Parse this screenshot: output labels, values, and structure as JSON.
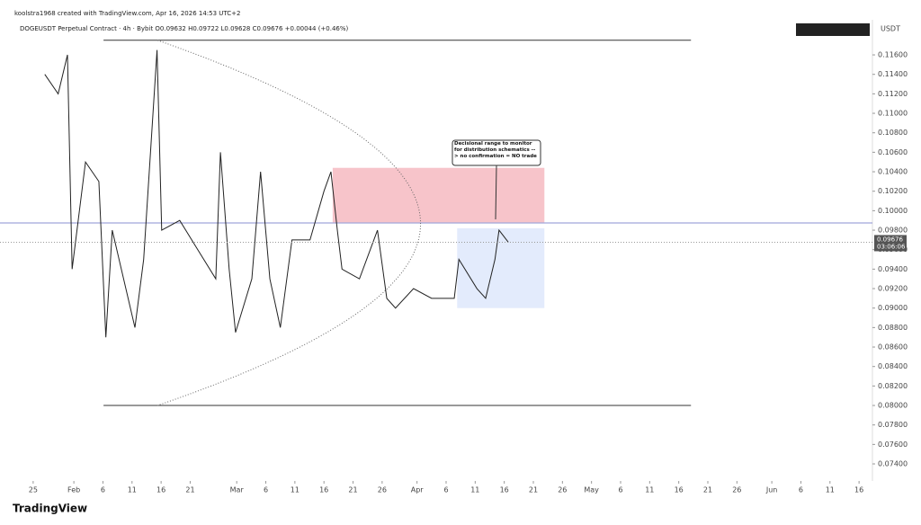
{
  "header": {
    "author_line": "koolstra1968 created with TradingView.com, Apr 16, 2026 14:53 UTC+2",
    "symbol_line": "DOGEUSDT Perpetual Contract · 4h · Bybit  O0.09632 H0.09722 L0.09628 C0.09676 +0.00044 (+0.46%)",
    "currency": "USDT"
  },
  "footer": {
    "logo": "TradingView"
  },
  "chart_data": {
    "type": "line",
    "color": "#222222",
    "x": [
      27,
      29.3,
      30.9,
      31.7,
      34,
      36.3,
      37.5,
      38.6,
      42.5,
      44,
      46.3,
      47.1,
      50.2,
      53.3,
      56.4,
      57.2,
      58.7,
      59.8,
      62.6,
      64.1,
      65.7,
      67.5,
      69.5,
      72.6,
      75,
      76.2,
      77.3,
      78.1,
      81.1,
      84.2,
      85.8,
      87.3,
      90.4,
      93.5,
      97.4,
      98.2,
      101.3,
      102.8,
      104.4,
      105.1,
      106.7
    ],
    "values": [
      0.114,
      0.112,
      0.116,
      0.094,
      0.105,
      0.103,
      0.087,
      0.098,
      0.088,
      0.095,
      0.1165,
      0.098,
      0.099,
      0.096,
      0.093,
      0.106,
      0.094,
      0.0875,
      0.093,
      0.104,
      0.093,
      0.088,
      0.097,
      0.097,
      0.102,
      0.104,
      0.098,
      0.094,
      0.093,
      0.098,
      0.091,
      0.09,
      0.092,
      0.091,
      0.091,
      0.095,
      0.092,
      0.091,
      0.095,
      0.098,
      0.09676
    ],
    "xlim": [
      19.3,
      169.3
    ],
    "xticks": [
      {
        "value": 25,
        "label": "25"
      },
      {
        "value": 32,
        "label": "Feb"
      },
      {
        "value": 37,
        "label": "6"
      },
      {
        "value": 42,
        "label": "11"
      },
      {
        "value": 47,
        "label": "16"
      },
      {
        "value": 52,
        "label": "21"
      },
      {
        "value": 60,
        "label": "Mar"
      },
      {
        "value": 65,
        "label": "6"
      },
      {
        "value": 70,
        "label": "11"
      },
      {
        "value": 75,
        "label": "16"
      },
      {
        "value": 80,
        "label": "21"
      },
      {
        "value": 85,
        "label": "26"
      },
      {
        "value": 91,
        "label": "Apr"
      },
      {
        "value": 96,
        "label": "6"
      },
      {
        "value": 101,
        "label": "11"
      },
      {
        "value": 106,
        "label": "16"
      },
      {
        "value": 111,
        "label": "21"
      },
      {
        "value": 116,
        "label": "26"
      },
      {
        "value": 121,
        "label": "May"
      },
      {
        "value": 126,
        "label": "6"
      },
      {
        "value": 131,
        "label": "11"
      },
      {
        "value": 136,
        "label": "16"
      },
      {
        "value": 141,
        "label": "21"
      },
      {
        "value": 146,
        "label": "26"
      },
      {
        "value": 152,
        "label": "Jun"
      },
      {
        "value": 157,
        "label": "6"
      },
      {
        "value": 162,
        "label": "11"
      },
      {
        "value": 167,
        "label": "16"
      }
    ],
    "ylim": [
      0.07271,
      0.11905
    ],
    "yticks": [
      {
        "value": 0.074,
        "label": "0.07400"
      },
      {
        "value": 0.076,
        "label": "0.07600"
      },
      {
        "value": 0.078,
        "label": "0.07800"
      },
      {
        "value": 0.08,
        "label": "0.08000"
      },
      {
        "value": 0.082,
        "label": "0.08200"
      },
      {
        "value": 0.084,
        "label": "0.08400"
      },
      {
        "value": 0.086,
        "label": "0.08600"
      },
      {
        "value": 0.088,
        "label": "0.08800"
      },
      {
        "value": 0.09,
        "label": "0.09000"
      },
      {
        "value": 0.092,
        "label": "0.09200"
      },
      {
        "value": 0.094,
        "label": "0.09400"
      },
      {
        "value": 0.096,
        "label": "0.09600"
      },
      {
        "value": 0.098,
        "label": "0.09800"
      },
      {
        "value": 0.1,
        "label": "0.10000"
      },
      {
        "value": 0.102,
        "label": "0.10200"
      },
      {
        "value": 0.104,
        "label": "0.10400"
      },
      {
        "value": 0.106,
        "label": "0.10600"
      },
      {
        "value": 0.108,
        "label": "0.10800"
      },
      {
        "value": 0.11,
        "label": "0.11000"
      },
      {
        "value": 0.112,
        "label": "0.11200"
      },
      {
        "value": 0.114,
        "label": "0.11400"
      },
      {
        "value": 0.116,
        "label": "0.11600"
      }
    ],
    "last_price": 0.09676,
    "countdown": "03:06:06",
    "levels": [
      {
        "y": 0.1175,
        "x": [
          37.1,
          138.1
        ]
      },
      {
        "y": 0.08,
        "x": [
          37.1,
          138.1
        ]
      },
      {
        "y": 0.09874,
        "x": [
          19.3,
          169.3
        ]
      }
    ],
    "zones": [
      {
        "low": 0.0988,
        "high": 0.1044,
        "x": [
          76.5,
          112.9
        ],
        "color": "#f5b5bd"
      },
      {
        "low": 0.09,
        "high": 0.0982,
        "x": [
          97.9,
          112.9
        ],
        "color": "#dce6fb"
      }
    ],
    "annotation": "Decisional range to monitor for distribution schematics --> no confirmation = NO trade"
  }
}
